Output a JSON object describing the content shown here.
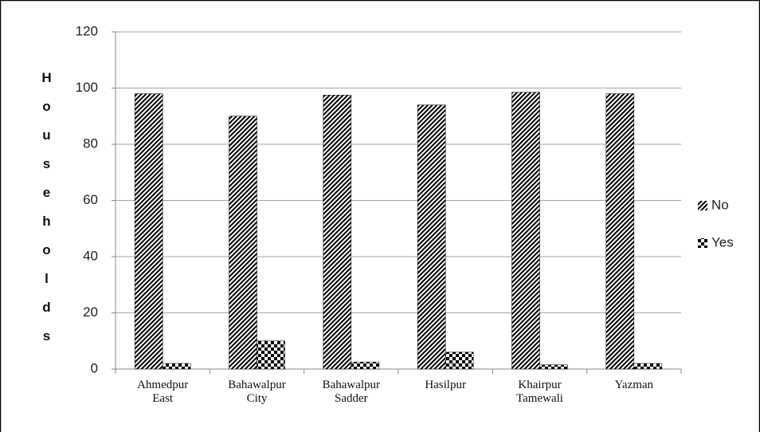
{
  "chart_data": {
    "type": "bar",
    "y_label": "Households",
    "categories": [
      "Ahmedpur East",
      "Bahawalpur City",
      "Bahawalpur Sadder",
      "Hasilpur",
      "Khairpur Tamewali",
      "Yazman"
    ],
    "series": [
      {
        "name": "No",
        "color": "#000000",
        "pattern": "diagonal",
        "values": [
          98,
          90,
          97.5,
          94,
          98.5,
          98
        ]
      },
      {
        "name": "Yes",
        "color": "#000000",
        "pattern": "checker",
        "values": [
          2,
          10,
          2.5,
          6,
          1.5,
          2
        ]
      }
    ],
    "ylim": [
      0,
      120
    ],
    "yticks": [
      0,
      20,
      40,
      60,
      80,
      100,
      120
    ],
    "grid": true,
    "legend": "right"
  }
}
